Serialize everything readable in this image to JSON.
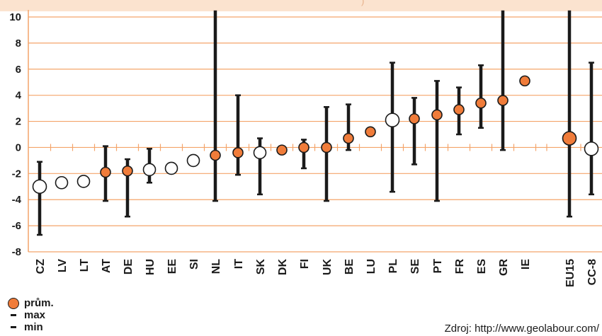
{
  "chart_data": {
    "type": "scatter",
    "subtype": "range-with-average",
    "ylim": [
      -8,
      10
    ],
    "yticks": [
      -8,
      -6,
      -4,
      -2,
      0,
      2,
      4,
      6,
      8,
      10
    ],
    "grid": true,
    "legend_position": "bottom-left",
    "colors": {
      "grid": "#f4a46a",
      "marker_orange": "#f07c3a",
      "marker_white": "#ffffff",
      "bar": "#1a1a1a"
    },
    "categories": [
      "CZ",
      "LV",
      "LT",
      "AT",
      "DE",
      "HU",
      "EE",
      "SI",
      "NL",
      "IT",
      "SK",
      "DK",
      "FI",
      "UK",
      "BE",
      "LU",
      "PL",
      "SE",
      "PT",
      "FR",
      "ES",
      "GR",
      "IE",
      "EU15",
      "CC-8"
    ],
    "average": [
      -3.0,
      -2.7,
      -2.6,
      -1.9,
      -1.8,
      -1.7,
      -1.6,
      -1.0,
      -0.6,
      -0.4,
      -0.4,
      -0.2,
      0.0,
      0.0,
      0.7,
      1.2,
      2.1,
      2.2,
      2.5,
      2.9,
      3.4,
      3.6,
      5.1,
      0.7,
      -0.1
    ],
    "max": [
      -1.1,
      null,
      null,
      0.1,
      -0.9,
      -0.1,
      null,
      null,
      10.5,
      4.0,
      0.7,
      null,
      0.6,
      3.1,
      3.3,
      null,
      6.5,
      3.8,
      5.1,
      4.6,
      6.3,
      10.5,
      null,
      10.5,
      6.5
    ],
    "min": [
      -6.7,
      null,
      null,
      -4.1,
      -5.3,
      -2.7,
      null,
      null,
      -4.1,
      -2.1,
      -3.6,
      null,
      -1.6,
      -4.1,
      -0.2,
      null,
      -3.4,
      -1.3,
      -4.1,
      1.0,
      1.5,
      -0.2,
      null,
      -5.3,
      -3.6
    ],
    "marker_style": [
      "white",
      "white",
      "white",
      "orange",
      "orange",
      "white",
      "white",
      "white",
      "orange",
      "orange",
      "white",
      "orange",
      "orange",
      "orange",
      "orange",
      "orange",
      "white",
      "orange",
      "orange",
      "orange",
      "orange",
      "orange",
      "orange",
      "orange",
      "white"
    ]
  },
  "legend": {
    "avg_label": "prům.",
    "max_label": "max",
    "min_label": "min"
  },
  "source": "Zdroj: http://www.geolabour.com/"
}
